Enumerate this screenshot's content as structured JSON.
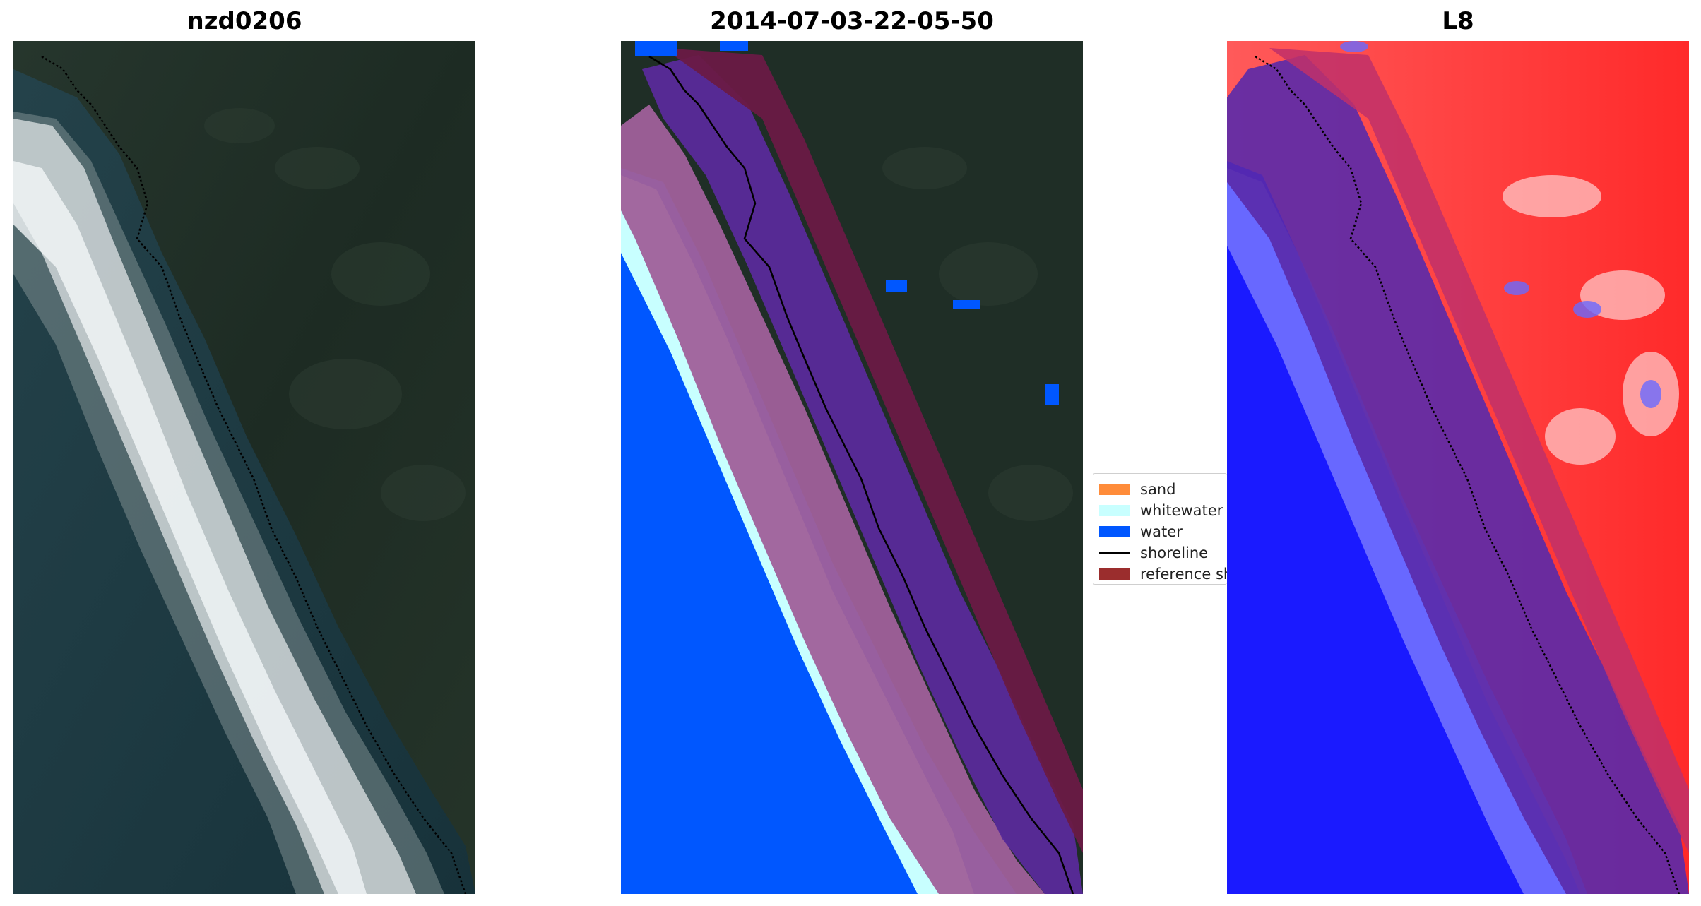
{
  "panels": {
    "image_title": "nzd0206",
    "classified_title": "2014-07-03-22-05-50",
    "index_title": "L8"
  },
  "legend": {
    "items": [
      {
        "label": "sand",
        "color": "#ff8c3a"
      },
      {
        "label": "whitewater",
        "color": "#c8ffff"
      },
      {
        "label": "water",
        "color": "#0057ff"
      },
      {
        "label": "shoreline",
        "color": "#000000"
      },
      {
        "label": "reference sh",
        "color": "#9b2d2d"
      }
    ]
  },
  "colors": {
    "land": "#1f2e26",
    "ocean": "#1d3a40",
    "whitewater_surf": "#d8dde0",
    "classified_water": "#0057ff",
    "classified_whitewater": "#c8ffff",
    "buffer_overlay": "#b0407a",
    "index_land": "#ff2020",
    "index_water": "#1a1aff"
  }
}
